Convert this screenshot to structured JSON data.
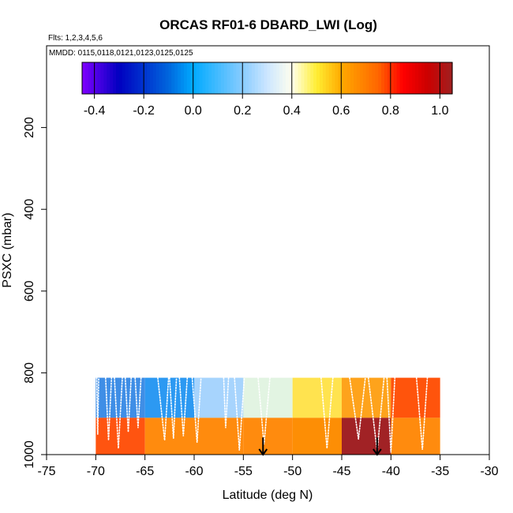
{
  "chart_data": {
    "type": "heatmap",
    "title": "ORCAS RF01-6 DBARD_LWI (Log)",
    "flights_note": "Flts: 1,2,3,4,5,6",
    "dates_note": "MMDD: 0115,0118,0121,0123,0125,0125",
    "xlabel": "Latitude (deg N)",
    "ylabel": "PSXC (mbar)",
    "xlim": [
      -75,
      -30
    ],
    "ylim": [
      1000,
      0
    ],
    "x_ticks": [
      -75,
      -70,
      -65,
      -60,
      -55,
      -50,
      -45,
      -40,
      -35,
      -30
    ],
    "x_tick_labels": [
      "-75",
      "-70",
      "-65",
      "-60",
      "-55",
      "-50",
      "-45",
      "-40",
      "-35",
      "-30"
    ],
    "y_ticks": [
      200,
      400,
      600,
      800,
      1000
    ],
    "y_tick_labels": [
      "200",
      "400",
      "600",
      "800",
      "1000"
    ],
    "colorbar": {
      "range": [
        -0.45,
        1.05
      ],
      "ticks": [
        -0.4,
        -0.2,
        0.0,
        0.2,
        0.4,
        0.6,
        0.8,
        1.0
      ],
      "tick_labels": [
        "-0.4",
        "-0.2",
        "0.0",
        "0.2",
        "0.4",
        "0.6",
        "0.8",
        "1.0"
      ],
      "stops": [
        {
          "v": -0.45,
          "c": "#8000ff"
        },
        {
          "v": -0.3,
          "c": "#0000c0"
        },
        {
          "v": -0.1,
          "c": "#0066dd"
        },
        {
          "v": 0.0,
          "c": "#00aaff"
        },
        {
          "v": 0.2,
          "c": "#88ccff"
        },
        {
          "v": 0.3,
          "c": "#cce6ff"
        },
        {
          "v": 0.4,
          "c": "#ffffee"
        },
        {
          "v": 0.5,
          "c": "#ffee33"
        },
        {
          "v": 0.6,
          "c": "#ffaa00"
        },
        {
          "v": 0.75,
          "c": "#ff6600"
        },
        {
          "v": 0.85,
          "c": "#ff0000"
        },
        {
          "v": 0.95,
          "c": "#cc0000"
        },
        {
          "v": 1.05,
          "c": "#a02020"
        }
      ]
    },
    "cells": [
      {
        "x0": -70,
        "x1": -65,
        "p0": 812,
        "p1": 910,
        "value": 0.05,
        "color": "#3f8ee6"
      },
      {
        "x0": -65,
        "x1": -60,
        "p0": 812,
        "p1": 910,
        "value": 0.1,
        "color": "#2c99f2"
      },
      {
        "x0": -60,
        "x1": -55,
        "p0": 812,
        "p1": 910,
        "value": 0.27,
        "color": "#a7d4fd"
      },
      {
        "x0": -55,
        "x1": -50,
        "p0": 812,
        "p1": 910,
        "value": 0.38,
        "color": "#e2f4e2"
      },
      {
        "x0": -50,
        "x1": -45,
        "p0": 812,
        "p1": 910,
        "value": 0.5,
        "color": "#ffe34f"
      },
      {
        "x0": -45,
        "x1": -40,
        "p0": 812,
        "p1": 910,
        "value": 0.62,
        "color": "#fea31c"
      },
      {
        "x0": -40,
        "x1": -35,
        "p0": 812,
        "p1": 910,
        "value": 0.75,
        "color": "#ff540c"
      },
      {
        "x0": -70,
        "x1": -65,
        "p0": 910,
        "p1": 1000,
        "value": 0.76,
        "color": "#ff5410"
      },
      {
        "x0": -65,
        "x1": -60,
        "p0": 910,
        "p1": 1000,
        "value": 0.66,
        "color": "#ff8b0e"
      },
      {
        "x0": -60,
        "x1": -55,
        "p0": 910,
        "p1": 1000,
        "value": 0.66,
        "color": "#ff8b0e"
      },
      {
        "x0": -55,
        "x1": -50,
        "p0": 910,
        "p1": 1000,
        "value": 0.66,
        "color": "#ff8b0e"
      },
      {
        "x0": -50,
        "x1": -45,
        "p0": 910,
        "p1": 1000,
        "value": 0.65,
        "color": "#fd8e05"
      },
      {
        "x0": -45,
        "x1": -40,
        "p0": 910,
        "p1": 1000,
        "value": 1.02,
        "color": "#a12225"
      },
      {
        "x0": -40,
        "x1": -35,
        "p0": 910,
        "p1": 1000,
        "value": 0.66,
        "color": "#ff8b0e"
      }
    ],
    "flight_tracks": [
      {
        "name": "track-1",
        "points": [
          [
            -69.9,
            812
          ],
          [
            -69.8,
            950
          ],
          [
            -69.7,
            812
          ]
        ]
      },
      {
        "name": "track-2",
        "points": [
          [
            -69.0,
            812
          ],
          [
            -68.7,
            965
          ],
          [
            -68.4,
            812
          ]
        ]
      },
      {
        "name": "track-3",
        "points": [
          [
            -68.1,
            812
          ],
          [
            -67.7,
            985
          ],
          [
            -67.3,
            812
          ]
        ]
      },
      {
        "name": "track-4",
        "points": [
          [
            -67.0,
            812
          ],
          [
            -66.7,
            945
          ],
          [
            -66.4,
            812
          ]
        ]
      },
      {
        "name": "track-5",
        "points": [
          [
            -66.0,
            812
          ],
          [
            -65.7,
            935
          ],
          [
            -65.4,
            812
          ]
        ]
      },
      {
        "name": "track-6",
        "points": [
          [
            -63.7,
            812
          ],
          [
            -63.0,
            965
          ],
          [
            -62.6,
            812
          ]
        ]
      },
      {
        "name": "track-7",
        "points": [
          [
            -62.5,
            812
          ],
          [
            -62.1,
            960
          ],
          [
            -61.8,
            812
          ]
        ]
      },
      {
        "name": "track-8",
        "points": [
          [
            -61.5,
            812
          ],
          [
            -61.1,
            955
          ],
          [
            -60.7,
            812
          ]
        ]
      },
      {
        "name": "track-9",
        "points": [
          [
            -60.2,
            812
          ],
          [
            -59.7,
            970
          ],
          [
            -59.3,
            812
          ]
        ]
      },
      {
        "name": "track-10",
        "points": [
          [
            -57.0,
            812
          ],
          [
            -56.8,
            935
          ],
          [
            -56.5,
            812
          ]
        ]
      },
      {
        "name": "track-11",
        "points": [
          [
            -55.9,
            812
          ],
          [
            -55.4,
            990
          ],
          [
            -54.9,
            812
          ]
        ]
      },
      {
        "name": "track-12",
        "points": [
          [
            -53.5,
            812
          ],
          [
            -52.9,
            975
          ],
          [
            -52.3,
            812
          ]
        ]
      },
      {
        "name": "track-13",
        "points": [
          [
            -47.1,
            812
          ],
          [
            -46.5,
            985
          ],
          [
            -45.9,
            812
          ]
        ]
      },
      {
        "name": "track-14",
        "points": [
          [
            -44.2,
            812
          ],
          [
            -43.3,
            962
          ],
          [
            -42.6,
            812
          ]
        ]
      },
      {
        "name": "track-15",
        "points": [
          [
            -42.3,
            812
          ],
          [
            -41.4,
            992
          ],
          [
            -40.7,
            812
          ]
        ]
      },
      {
        "name": "track-16",
        "points": [
          [
            -40.4,
            812
          ],
          [
            -40.0,
            995
          ],
          [
            -39.6,
            812
          ]
        ]
      },
      {
        "name": "track-17",
        "points": [
          [
            -37.4,
            812
          ],
          [
            -36.8,
            988
          ],
          [
            -36.3,
            812
          ]
        ]
      }
    ],
    "arrows": [
      {
        "name": "arrow-1",
        "lat": -53.0,
        "p_top": 958,
        "p_bottom": 1000
      },
      {
        "name": "arrow-2",
        "lat": -41.4,
        "p_top": 958,
        "p_bottom": 1000
      }
    ]
  }
}
